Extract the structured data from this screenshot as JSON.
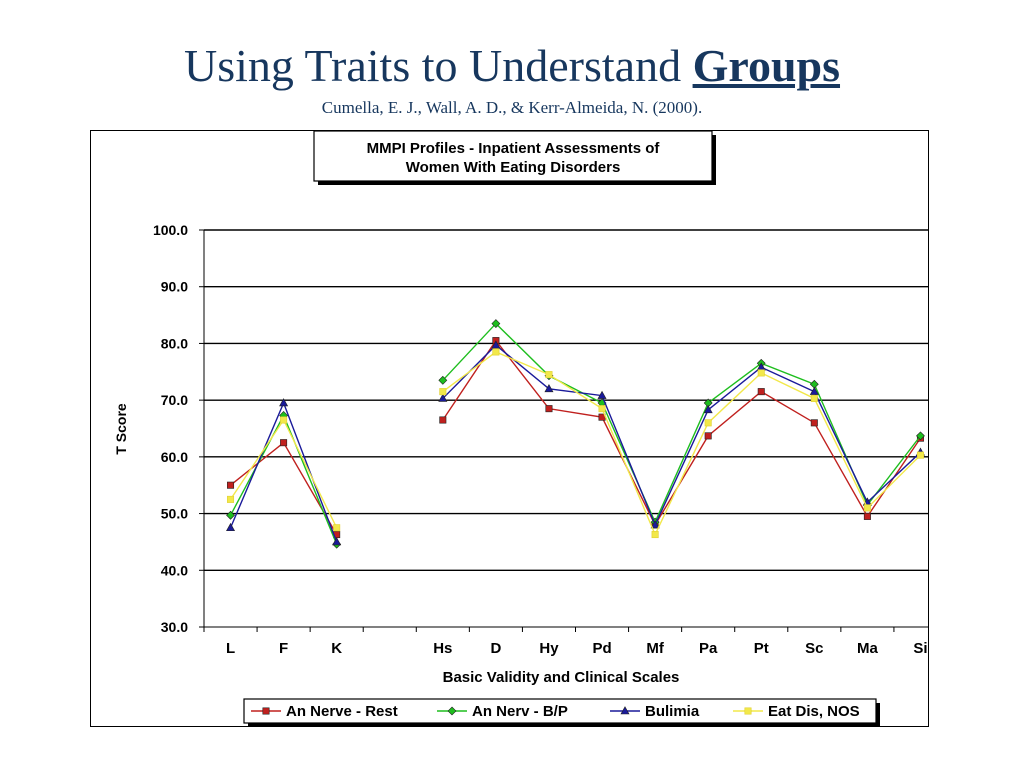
{
  "slide": {
    "title_main": "Using Traits to Understand",
    "title_emphasis": "Groups",
    "citation": "Cumella, E. J., Wall, A. D., & Kerr-Almeida, N. (2000)."
  },
  "chart_data": {
    "type": "line",
    "title_lines": [
      "MMPI Profiles - Inpatient Assessments of",
      "Women With Eating Disorders"
    ],
    "xlabel": "Basic Validity and Clinical Scales",
    "ylabel": "T Score",
    "ylim": [
      30,
      100
    ],
    "yticks": [
      "30.0",
      "40.0",
      "50.0",
      "60.0",
      "70.0",
      "80.0",
      "90.0",
      "100.0"
    ],
    "grid": true,
    "legend_position": "bottom",
    "categories": [
      "L",
      "F",
      "K",
      "",
      "Hs",
      "D",
      "Hy",
      "Pd",
      "Mf",
      "Pa",
      "Pt",
      "Sc",
      "Ma",
      "Si"
    ],
    "series": [
      {
        "name": "An Nerve - Rest",
        "color": "#c0201e",
        "marker": "square",
        "values": [
          55.0,
          62.5,
          46.3,
          null,
          66.5,
          80.5,
          68.5,
          67.0,
          48.0,
          63.7,
          71.5,
          66.0,
          49.5,
          63.3
        ]
      },
      {
        "name": "An Nerv - B/P",
        "color": "#1ebe1e",
        "marker": "diamond",
        "values": [
          49.7,
          67.3,
          44.6,
          null,
          73.5,
          83.5,
          74.3,
          69.5,
          48.5,
          69.5,
          76.5,
          72.8,
          51.5,
          63.7
        ]
      },
      {
        "name": "Bulimia",
        "color": "#1a1a9a",
        "marker": "triangle",
        "values": [
          47.5,
          69.5,
          45.0,
          null,
          70.3,
          79.7,
          72.0,
          70.8,
          48.0,
          68.3,
          75.8,
          71.5,
          52.0,
          60.8
        ]
      },
      {
        "name": "Eat Dis, NOS",
        "color": "#f2e84a",
        "marker": "square",
        "values": [
          52.5,
          66.5,
          47.5,
          null,
          71.5,
          78.5,
          74.5,
          68.5,
          46.3,
          66.0,
          74.8,
          70.3,
          51.0,
          60.3
        ]
      }
    ]
  }
}
